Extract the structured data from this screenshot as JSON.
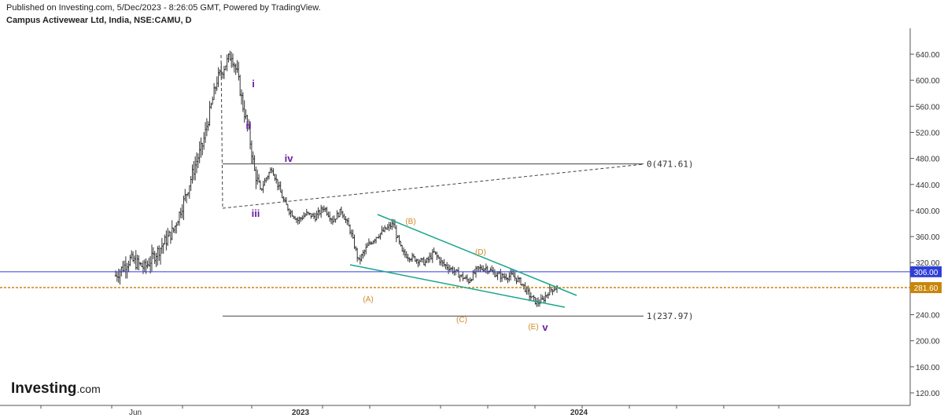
{
  "header": {
    "published": "Published on Investing.com, 5/Dec/2023 - 8:26:05 GMT, Powered by TradingView.",
    "symbol": "Campus Activewear Ltd, India, NSE:CAMU, D"
  },
  "logo": {
    "main": "Investing",
    "suffix": ".com"
  },
  "chart_data": {
    "type": "candlestick",
    "ylim": [
      100,
      660
    ],
    "y_ticks": [
      640,
      600,
      560,
      520,
      480,
      440,
      400,
      360,
      320,
      280,
      240,
      200,
      160,
      120
    ],
    "y_tick_labels": [
      "640.00",
      "600.00",
      "560.00",
      "520.00",
      "480.00",
      "440.00",
      "400.00",
      "360.00",
      "320.00",
      "280.00",
      "240.00",
      "200.00",
      "160.00",
      "120.00"
    ],
    "x_tick_labels": [
      "Jun",
      "2023",
      "2024"
    ],
    "price_labels": [
      {
        "value": 306.0,
        "text": "306.00",
        "color": "#2f3fd6"
      },
      {
        "value": 281.6,
        "text": "281.60",
        "color": "#c8860a"
      }
    ],
    "fib_levels": [
      {
        "text": "0(471.61)",
        "value": 471.61
      },
      {
        "text": "1(237.97)",
        "value": 237.97
      }
    ],
    "waves": [
      "i",
      "ii",
      "iii",
      "iv",
      "v"
    ],
    "abcde": [
      "(A)",
      "(B)",
      "(C)",
      "(D)",
      "(E)"
    ],
    "price_path": [
      [
        0,
        300
      ],
      [
        10,
        325
      ],
      [
        20,
        312
      ],
      [
        30,
        340
      ],
      [
        40,
        370
      ],
      [
        48,
        420
      ],
      [
        55,
        470
      ],
      [
        60,
        500
      ],
      [
        66,
        560
      ],
      [
        70,
        600
      ],
      [
        76,
        625
      ],
      [
        80,
        640
      ],
      [
        84,
        610
      ],
      [
        88,
        560
      ],
      [
        92,
        520
      ],
      [
        96,
        460
      ],
      [
        100,
        430
      ],
      [
        104,
        450
      ],
      [
        108,
        465
      ],
      [
        112,
        440
      ],
      [
        116,
        415
      ],
      [
        120,
        400
      ],
      [
        126,
        385
      ],
      [
        132,
        395
      ],
      [
        138,
        390
      ],
      [
        144,
        405
      ],
      [
        150,
        385
      ],
      [
        156,
        400
      ],
      [
        162,
        370
      ],
      [
        168,
        322
      ],
      [
        174,
        345
      ],
      [
        180,
        360
      ],
      [
        186,
        370
      ],
      [
        192,
        380
      ],
      [
        194,
        362
      ],
      [
        196,
        350
      ],
      [
        198,
        335
      ],
      [
        202,
        330
      ],
      [
        208,
        325
      ],
      [
        214,
        320
      ],
      [
        220,
        335
      ],
      [
        226,
        318
      ],
      [
        232,
        310
      ],
      [
        238,
        300
      ],
      [
        244,
        292
      ],
      [
        250,
        310
      ],
      [
        256,
        312
      ],
      [
        262,
        303
      ],
      [
        268,
        298
      ],
      [
        274,
        300
      ],
      [
        280,
        290
      ],
      [
        286,
        270
      ],
      [
        291,
        258
      ],
      [
        295,
        262
      ],
      [
        300,
        278
      ],
      [
        305,
        282
      ]
    ]
  }
}
